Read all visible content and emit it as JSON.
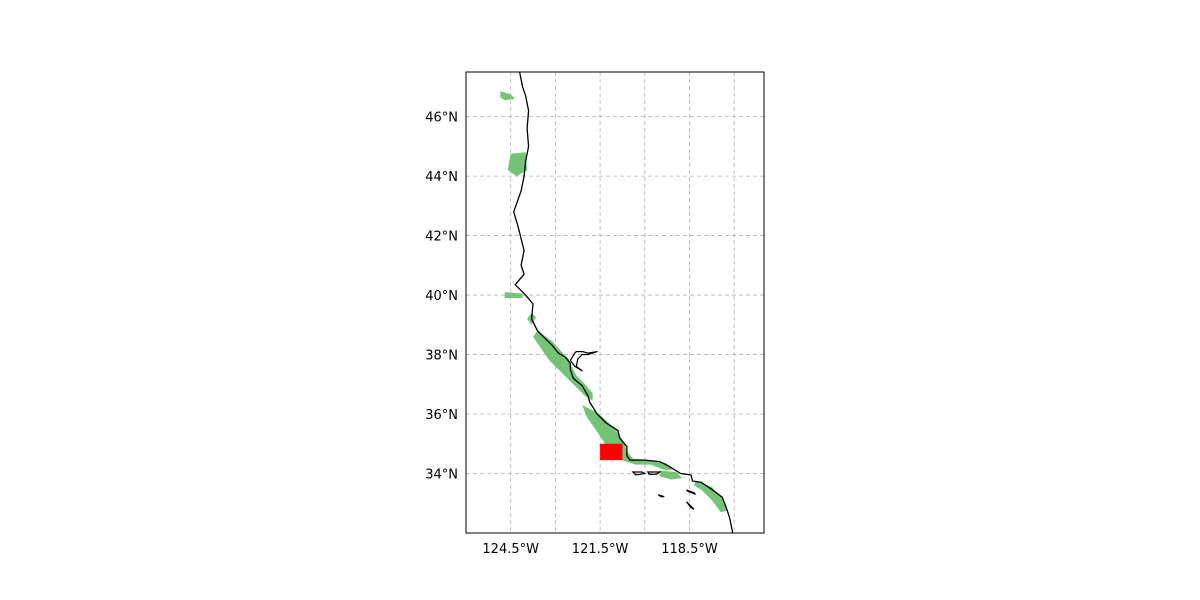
{
  "map": {
    "extent": {
      "lon": [
        -126.0,
        -116.0
      ],
      "lat": [
        32.0,
        47.5
      ]
    },
    "gridlines": true,
    "gridline_style": "dashed",
    "lat_ticks": [
      {
        "value": 34,
        "label": "34°N"
      },
      {
        "value": 36,
        "label": "36°N"
      },
      {
        "value": 38,
        "label": "38°N"
      },
      {
        "value": 40,
        "label": "40°N"
      },
      {
        "value": 42,
        "label": "42°N"
      },
      {
        "value": 44,
        "label": "44°N"
      },
      {
        "value": 46,
        "label": "46°N"
      }
    ],
    "lon_ticks": [
      {
        "value": -124.5,
        "label": "124.5°W"
      },
      {
        "value": -121.5,
        "label": "121.5°W"
      },
      {
        "value": -118.5,
        "label": "118.5°W"
      }
    ],
    "lon_gridlines": [
      -124.5,
      -123.0,
      -121.5,
      -120.0,
      -118.5,
      -117.0
    ],
    "colors": {
      "coastline": "#000000",
      "land_cover": "#74c476",
      "highlight": "#ff0000",
      "grid": "#b0b0b0",
      "frame": "#000000"
    },
    "highlight_box": {
      "lon": [
        -121.5,
        -120.75
      ],
      "lat": [
        34.45,
        35.0
      ]
    },
    "coastline": [
      [
        -124.2,
        47.5
      ],
      [
        -124.1,
        47.0
      ],
      [
        -124.0,
        46.7
      ],
      [
        -123.9,
        46.2
      ],
      [
        -123.95,
        45.6
      ],
      [
        -123.9,
        45.0
      ],
      [
        -124.0,
        44.5
      ],
      [
        -124.05,
        44.0
      ],
      [
        -124.15,
        43.5
      ],
      [
        -124.4,
        42.8
      ],
      [
        -124.25,
        42.3
      ],
      [
        -124.15,
        41.9
      ],
      [
        -124.05,
        41.5
      ],
      [
        -124.15,
        41.0
      ],
      [
        -124.05,
        40.7
      ],
      [
        -124.35,
        40.35
      ],
      [
        -124.0,
        40.0
      ],
      [
        -123.75,
        39.7
      ],
      [
        -123.8,
        39.2
      ],
      [
        -123.6,
        38.8
      ],
      [
        -123.1,
        38.3
      ],
      [
        -122.9,
        38.05
      ],
      [
        -122.65,
        37.9
      ],
      [
        -122.5,
        37.7
      ],
      [
        -122.5,
        37.5
      ],
      [
        -122.4,
        37.2
      ],
      [
        -122.1,
        36.95
      ],
      [
        -121.9,
        36.6
      ],
      [
        -121.85,
        36.4
      ],
      [
        -121.6,
        36.0
      ],
      [
        -121.3,
        35.7
      ],
      [
        -120.9,
        35.45
      ],
      [
        -120.85,
        35.2
      ],
      [
        -120.6,
        34.9
      ],
      [
        -120.6,
        34.6
      ],
      [
        -120.5,
        34.45
      ],
      [
        -120.0,
        34.45
      ],
      [
        -119.5,
        34.4
      ],
      [
        -119.2,
        34.25
      ],
      [
        -118.8,
        34.0
      ],
      [
        -118.45,
        33.95
      ],
      [
        -118.4,
        33.75
      ],
      [
        -118.1,
        33.7
      ],
      [
        -117.8,
        33.5
      ],
      [
        -117.4,
        33.2
      ],
      [
        -117.25,
        32.8
      ],
      [
        -117.15,
        32.5
      ],
      [
        -117.05,
        32.0
      ]
    ],
    "bay_outline": [
      [
        -122.5,
        37.8
      ],
      [
        -122.35,
        38.05
      ],
      [
        -122.3,
        38.1
      ],
      [
        -122.1,
        38.1
      ],
      [
        -121.9,
        38.05
      ],
      [
        -121.6,
        38.1
      ],
      [
        -121.9,
        38.0
      ],
      [
        -122.1,
        38.0
      ],
      [
        -122.25,
        37.85
      ],
      [
        -122.3,
        37.6
      ],
      [
        -122.1,
        37.45
      ],
      [
        -122.35,
        37.6
      ],
      [
        -122.5,
        37.8
      ]
    ],
    "islands": [
      [
        [
          -120.4,
          34.05
        ],
        [
          -120.1,
          34.05
        ],
        [
          -120.0,
          34.0
        ],
        [
          -120.3,
          33.95
        ],
        [
          -120.4,
          34.05
        ]
      ],
      [
        [
          -119.9,
          34.05
        ],
        [
          -119.5,
          34.05
        ],
        [
          -119.6,
          33.98
        ],
        [
          -119.85,
          33.97
        ],
        [
          -119.9,
          34.05
        ]
      ],
      [
        [
          -118.6,
          33.45
        ],
        [
          -118.35,
          33.35
        ],
        [
          -118.3,
          33.3
        ],
        [
          -118.55,
          33.4
        ],
        [
          -118.6,
          33.45
        ]
      ],
      [
        [
          -118.6,
          33.05
        ],
        [
          -118.45,
          32.85
        ],
        [
          -118.35,
          32.8
        ],
        [
          -118.55,
          33.0
        ],
        [
          -118.6,
          33.05
        ]
      ],
      [
        [
          -119.55,
          33.28
        ],
        [
          -119.45,
          33.22
        ],
        [
          -119.35,
          33.22
        ],
        [
          -119.5,
          33.27
        ],
        [
          -119.55,
          33.28
        ]
      ]
    ],
    "land_cover_regions": [
      [
        [
          -124.85,
          46.85
        ],
        [
          -124.5,
          46.75
        ],
        [
          -124.35,
          46.6
        ],
        [
          -124.7,
          46.55
        ],
        [
          -124.85,
          46.65
        ],
        [
          -124.85,
          46.85
        ]
      ],
      [
        [
          -124.5,
          44.75
        ],
        [
          -124.0,
          44.8
        ],
        [
          -123.95,
          44.2
        ],
        [
          -124.3,
          44.0
        ],
        [
          -124.6,
          44.2
        ],
        [
          -124.5,
          44.75
        ]
      ],
      [
        [
          -124.7,
          40.1
        ],
        [
          -124.1,
          40.05
        ],
        [
          -124.1,
          39.9
        ],
        [
          -124.7,
          39.9
        ],
        [
          -124.7,
          40.1
        ]
      ],
      [
        [
          -123.8,
          39.4
        ],
        [
          -123.65,
          39.25
        ],
        [
          -123.8,
          39.0
        ],
        [
          -123.95,
          39.2
        ],
        [
          -123.8,
          39.4
        ]
      ],
      [
        [
          -123.6,
          38.8
        ],
        [
          -123.1,
          38.45
        ],
        [
          -122.8,
          38.1
        ],
        [
          -122.55,
          37.85
        ],
        [
          -122.45,
          37.6
        ],
        [
          -122.3,
          37.3
        ],
        [
          -122.05,
          37.05
        ],
        [
          -121.75,
          36.7
        ],
        [
          -121.75,
          36.45
        ],
        [
          -122.0,
          36.6
        ],
        [
          -122.4,
          37.0
        ],
        [
          -122.8,
          37.4
        ],
        [
          -123.2,
          37.8
        ],
        [
          -123.55,
          38.3
        ],
        [
          -123.75,
          38.6
        ],
        [
          -123.6,
          38.8
        ]
      ],
      [
        [
          -122.1,
          36.3
        ],
        [
          -121.6,
          36.05
        ],
        [
          -121.25,
          35.75
        ],
        [
          -120.95,
          35.45
        ],
        [
          -120.7,
          35.05
        ],
        [
          -120.6,
          34.75
        ],
        [
          -120.4,
          34.5
        ],
        [
          -119.8,
          34.45
        ],
        [
          -119.3,
          34.35
        ],
        [
          -119.0,
          34.15
        ],
        [
          -119.3,
          34.1
        ],
        [
          -119.8,
          34.3
        ],
        [
          -120.3,
          34.3
        ],
        [
          -120.8,
          34.45
        ],
        [
          -121.15,
          34.65
        ],
        [
          -121.4,
          35.1
        ],
        [
          -121.7,
          35.55
        ],
        [
          -121.95,
          35.9
        ],
        [
          -122.1,
          36.3
        ]
      ],
      [
        [
          -119.5,
          34.1
        ],
        [
          -118.95,
          34.05
        ],
        [
          -118.75,
          33.85
        ],
        [
          -119.1,
          33.8
        ],
        [
          -119.5,
          33.9
        ],
        [
          -119.5,
          34.1
        ]
      ],
      [
        [
          -118.3,
          33.75
        ],
        [
          -117.75,
          33.55
        ],
        [
          -117.4,
          33.15
        ],
        [
          -117.25,
          32.75
        ],
        [
          -117.45,
          32.7
        ],
        [
          -117.75,
          33.1
        ],
        [
          -118.1,
          33.45
        ],
        [
          -118.35,
          33.6
        ],
        [
          -118.3,
          33.75
        ]
      ]
    ]
  }
}
